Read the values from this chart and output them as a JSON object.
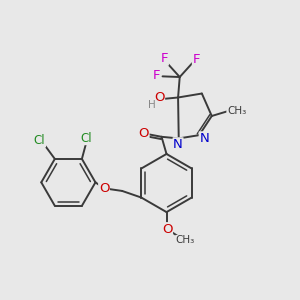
{
  "bg_color": "#e8e8e8",
  "bond_color": "#3a3a3a",
  "bond_width": 1.4,
  "atom_colors": {
    "C": "#3a3a3a",
    "N": "#0000cc",
    "O": "#cc0000",
    "F": "#cc00cc",
    "Cl": "#228B22",
    "H": "#888888"
  },
  "font_size": 8.5
}
